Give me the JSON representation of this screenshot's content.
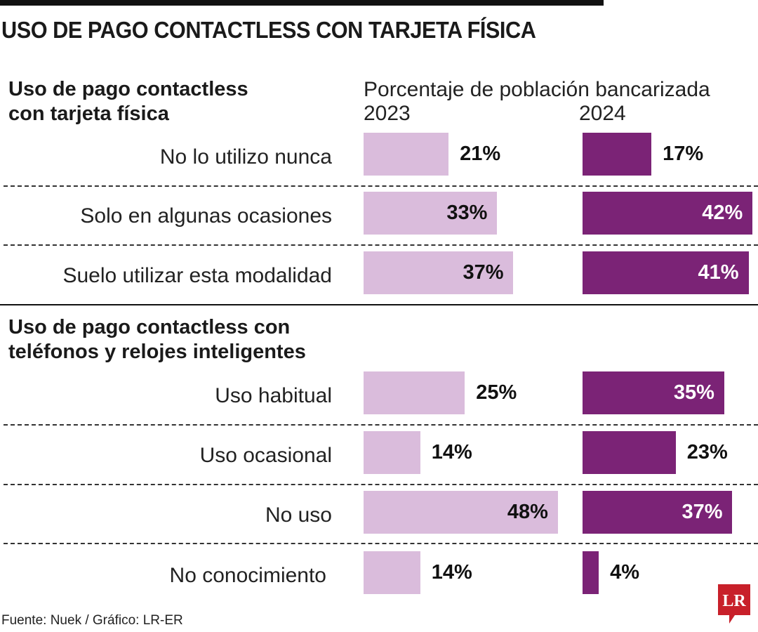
{
  "title": "USO DE PAGO CONTACTLESS CON TARJETA FÍSICA",
  "chart_data": {
    "type": "bar",
    "orientation": "horizontal",
    "subtitle": "Porcentaje de población bancarizada",
    "unit": "%",
    "series_colors": {
      "2023": "#dabcdc",
      "2024": "#7b2376"
    },
    "groups": [
      {
        "title": "Uso de pago contactless con tarjeta física",
        "categories": [
          "No lo utilizo nunca",
          "Solo en algunas ocasiones",
          "Suelo utilizar esta modalidad"
        ],
        "series": [
          {
            "name": "2023",
            "values": [
              21,
              33,
              37
            ]
          },
          {
            "name": "2024",
            "values": [
              17,
              42,
              41
            ]
          }
        ]
      },
      {
        "title": "Uso de pago contactless con teléfonos y relojes inteligentes",
        "categories": [
          "Uso habitual",
          "Uso ocasional",
          "No uso",
          "No conocimiento"
        ],
        "series": [
          {
            "name": "2023",
            "values": [
              25,
              14,
              48,
              14
            ]
          },
          {
            "name": "2024",
            "values": [
              35,
              23,
              37,
              4
            ]
          }
        ]
      }
    ]
  },
  "source": "Fuente: Nuek / Gráfico: LR-ER",
  "logo": "LR"
}
